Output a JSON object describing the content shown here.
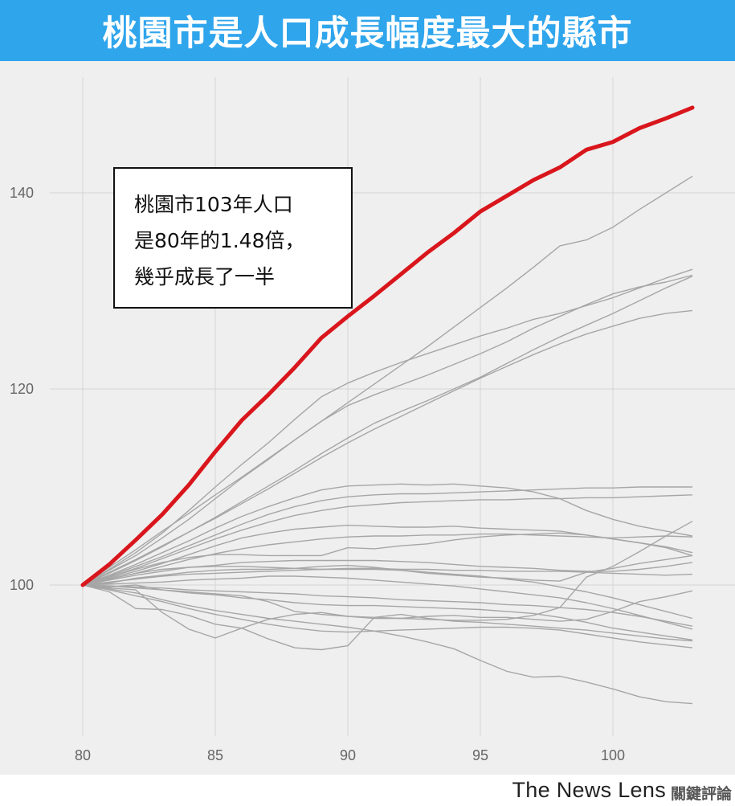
{
  "title": "桃園市是人口成長幅度最大的縣市",
  "annotation": {
    "lines": [
      "桃園市103年人口",
      "是80年的1.48倍，",
      "幾乎成長了一半"
    ]
  },
  "footer": {
    "brand": "The News Lens",
    "brand_cn": "關鍵評論"
  },
  "colors": {
    "title_bg": "#2fa5ec",
    "plot_bg": "#efefef",
    "highlight": "#d9161c",
    "other_lines": "#a6a6a6",
    "grid": "#d6d6d6"
  },
  "chart_data": {
    "type": "line",
    "title": "桃園市是人口成長幅度最大的縣市",
    "xlabel": "",
    "ylabel": "",
    "xlim": [
      79.5,
      104
    ],
    "ylim": [
      85,
      150
    ],
    "xticks": [
      80,
      85,
      90,
      95,
      100
    ],
    "yticks": [
      100,
      120,
      140
    ],
    "grid": true,
    "x": [
      80,
      81,
      82,
      83,
      84,
      85,
      86,
      87,
      88,
      89,
      90,
      91,
      92,
      93,
      94,
      95,
      96,
      97,
      98,
      99,
      100,
      101,
      102,
      103
    ],
    "highlight": {
      "values": [
        100,
        102.1,
        104.6,
        107.2,
        110.2,
        113.6,
        116.8,
        119.4,
        122.2,
        125.2,
        127.4,
        129.5,
        131.7,
        133.9,
        135.9,
        138.1,
        139.7,
        141.3,
        142.6,
        144.4,
        145.2,
        146.6,
        147.6,
        148.7
      ]
    },
    "series": [
      {
        "values": [
          100,
          101.8,
          103.6,
          105.5,
          107.3,
          109.2,
          111.0,
          112.9,
          114.8,
          116.7,
          118.6,
          120.5,
          122.4,
          124.3,
          126.3,
          128.3,
          130.3,
          132.4,
          134.6,
          135.2,
          136.5,
          138.3,
          140.0,
          141.7
        ]
      },
      {
        "values": [
          100,
          101.6,
          103.3,
          105.3,
          107.6,
          110.0,
          112.3,
          114.5,
          116.9,
          119.2,
          120.6,
          121.7,
          122.7,
          123.6,
          124.5,
          125.4,
          126.2,
          127.1,
          127.7,
          128.5,
          129.3,
          130.3,
          131.3,
          132.2
        ]
      },
      {
        "values": [
          100,
          101.3,
          102.6,
          104.0,
          105.4,
          106.8,
          108.3,
          109.8,
          111.4,
          113.0,
          114.5,
          115.9,
          117.2,
          118.5,
          119.8,
          121.1,
          122.3,
          123.5,
          124.6,
          125.6,
          126.4,
          127.2,
          127.7,
          128.0
        ]
      },
      {
        "values": [
          100,
          101.5,
          103.0,
          104.8,
          106.7,
          108.8,
          110.9,
          112.8,
          114.8,
          116.7,
          118.3,
          119.4,
          120.4,
          121.4,
          122.5,
          123.6,
          124.8,
          126.2,
          127.4,
          128.6,
          129.7,
          130.4,
          130.9,
          131.6
        ]
      },
      {
        "values": [
          100,
          101.2,
          102.5,
          103.9,
          105.4,
          106.9,
          108.5,
          110.1,
          111.7,
          113.4,
          115.0,
          116.5,
          117.7,
          118.8,
          120.0,
          121.2,
          122.6,
          124.0,
          125.3,
          126.5,
          127.7,
          129.0,
          130.3,
          131.5
        ]
      },
      {
        "values": [
          100,
          101.0,
          102.1,
          103.3,
          104.5,
          105.8,
          107.0,
          108.0,
          108.9,
          109.7,
          110.1,
          110.2,
          110.3,
          110.2,
          110.3,
          110.1,
          109.9,
          109.5,
          108.8,
          107.6,
          106.7,
          106.0,
          105.5,
          105.0
        ]
      },
      {
        "values": [
          100,
          100.9,
          101.9,
          102.9,
          104.0,
          105.1,
          106.2,
          107.2,
          108.0,
          108.6,
          109.0,
          109.2,
          109.3,
          109.3,
          109.4,
          109.5,
          109.6,
          109.7,
          109.8,
          109.9,
          109.9,
          110.0,
          110.0,
          110.0
        ]
      },
      {
        "values": [
          100,
          100.8,
          101.7,
          102.7,
          103.7,
          104.7,
          105.6,
          106.4,
          107.1,
          107.6,
          108.0,
          108.2,
          108.4,
          108.5,
          108.6,
          108.7,
          108.7,
          108.8,
          108.8,
          108.9,
          108.9,
          109.0,
          109.1,
          109.2
        ]
      },
      {
        "values": [
          100,
          100.7,
          101.4,
          102.2,
          103.1,
          104.0,
          104.8,
          105.3,
          105.7,
          105.9,
          106.1,
          106.0,
          105.9,
          105.9,
          106.0,
          105.8,
          105.7,
          105.6,
          105.5,
          105.1,
          104.7,
          104.3,
          103.8,
          103.0
        ]
      },
      {
        "values": [
          100,
          100.6,
          101.2,
          101.9,
          102.6,
          103.2,
          103.7,
          104.1,
          104.4,
          104.7,
          104.9,
          105.0,
          105.0,
          105.1,
          105.1,
          105.2,
          105.2,
          105.1,
          105.0,
          104.9,
          104.8,
          104.9,
          105.0,
          104.9
        ]
      },
      {
        "values": [
          100,
          100.8,
          101.6,
          102.3,
          102.8,
          103.1,
          103.1,
          103.0,
          103.0,
          103.0,
          103.8,
          103.7,
          104.0,
          104.2,
          104.6,
          104.9,
          105.1,
          105.2,
          105.3,
          105.1,
          104.7,
          104.3,
          103.9,
          103.3
        ]
      },
      {
        "values": [
          100,
          100.5,
          101.0,
          101.4,
          101.8,
          102.0,
          102.3,
          102.4,
          102.5,
          102.5,
          102.5,
          102.5,
          102.4,
          102.3,
          102.1,
          101.9,
          101.8,
          101.7,
          101.5,
          101.4,
          101.4,
          101.6,
          101.9,
          102.3
        ]
      },
      {
        "values": [
          100,
          100.6,
          101.2,
          101.6,
          101.8,
          101.9,
          101.9,
          101.8,
          101.7,
          101.6,
          101.6,
          101.6,
          101.5,
          101.3,
          101.1,
          100.9,
          100.6,
          100.3,
          99.8,
          99.3,
          98.7,
          98.0,
          97.3,
          96.6
        ]
      },
      {
        "values": [
          100,
          100.2,
          100.7,
          101.0,
          101.3,
          101.5,
          101.6,
          101.6,
          101.7,
          101.9,
          102.0,
          101.8,
          101.5,
          101.2,
          101.0,
          100.8,
          100.7,
          100.5,
          100.4,
          101.3,
          101.7,
          102.2,
          102.6,
          103.0
        ]
      },
      {
        "values": [
          100,
          100.3,
          100.6,
          100.9,
          101.1,
          101.2,
          101.3,
          101.4,
          101.5,
          101.6,
          101.7,
          101.7,
          101.6,
          101.6,
          101.5,
          101.5,
          101.4,
          101.4,
          101.4,
          101.3,
          101.2,
          101.1,
          101.0,
          101.1
        ]
      },
      {
        "values": [
          100,
          100.1,
          100.2,
          100.3,
          100.5,
          100.6,
          100.7,
          100.9,
          100.9,
          100.8,
          100.7,
          100.5,
          100.3,
          100.1,
          99.9,
          99.6,
          99.3,
          99.0,
          98.7,
          98.2,
          97.6,
          96.9,
          96.2,
          95.5
        ]
      },
      {
        "values": [
          100,
          99.9,
          99.8,
          99.7,
          99.5,
          99.4,
          99.3,
          99.2,
          99.1,
          98.9,
          98.8,
          98.7,
          98.5,
          98.4,
          98.3,
          98.2,
          98.0,
          97.9,
          97.7,
          97.5,
          97.2,
          96.8,
          96.3,
          95.8
        ]
      },
      {
        "values": [
          100,
          99.8,
          100.0,
          99.5,
          99.3,
          99.1,
          98.9,
          98.3,
          97.3,
          97.0,
          96.8,
          96.7,
          96.6,
          96.5,
          96.4,
          96.4,
          96.5,
          96.9,
          97.7,
          100.8,
          101.9,
          103.4,
          105.0,
          106.5
        ]
      },
      {
        "values": [
          100,
          99.9,
          99.7,
          99.5,
          99.2,
          99.0,
          98.7,
          98.5,
          98.2,
          98.0,
          97.9,
          97.9,
          97.8,
          97.7,
          97.6,
          97.5,
          97.3,
          97.1,
          96.7,
          96.2,
          95.6,
          95.2,
          94.8,
          94.4
        ]
      },
      {
        "values": [
          100,
          99.3,
          97.6,
          97.5,
          96.9,
          96.0,
          95.6,
          96.5,
          97.0,
          97.2,
          96.8,
          96.6,
          96.6,
          96.8,
          96.9,
          96.7,
          96.7,
          96.5,
          96.3,
          96.5,
          97.3,
          98.3,
          98.8,
          99.4
        ]
      },
      {
        "values": [
          100,
          99.6,
          99.2,
          98.5,
          97.9,
          97.4,
          97.0,
          96.6,
          96.3,
          96.0,
          95.7,
          95.3,
          94.8,
          94.2,
          93.5,
          92.3,
          91.2,
          90.6,
          90.7,
          90.1,
          89.4,
          88.6,
          88.1,
          87.9
        ]
      },
      {
        "values": [
          100,
          99.7,
          99.5,
          97.2,
          95.5,
          94.6,
          95.6,
          94.5,
          93.6,
          93.4,
          93.8,
          96.7,
          97.0,
          96.6,
          96.3,
          96.2,
          96.0,
          95.8,
          95.6,
          95.4,
          95.1,
          94.8,
          94.5,
          94.3
        ]
      },
      {
        "values": [
          100,
          99.5,
          98.9,
          98.3,
          97.6,
          97.0,
          96.5,
          96.0,
          95.6,
          95.3,
          95.2,
          95.3,
          95.4,
          95.5,
          95.6,
          95.7,
          95.7,
          95.6,
          95.4,
          95.0,
          94.6,
          94.2,
          93.9,
          93.6
        ]
      }
    ]
  }
}
